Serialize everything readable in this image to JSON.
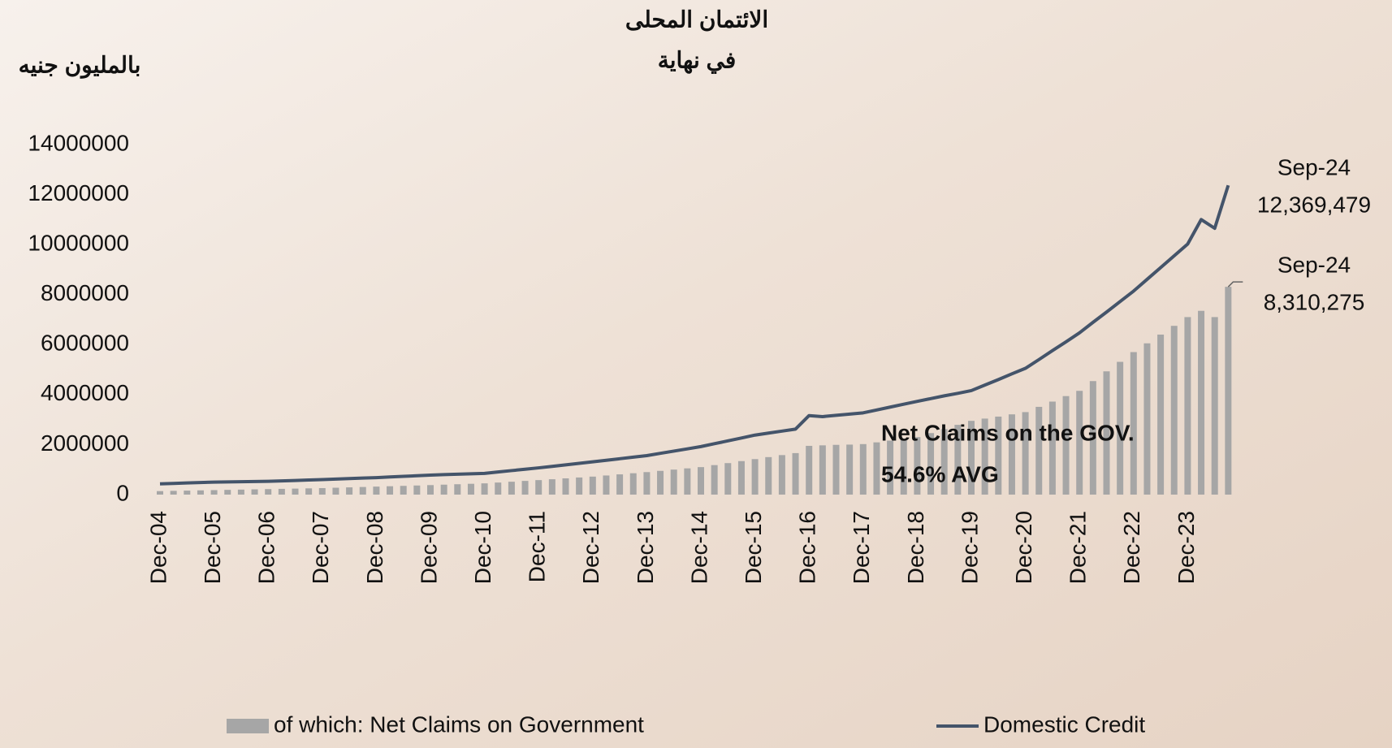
{
  "chart_data": {
    "type": "bar-line",
    "title_lines": [
      "الائتمان المحلى",
      "في نهاية"
    ],
    "y_label": "بالمليون جنيه",
    "categories": [
      "Dec-04",
      null,
      null,
      null,
      "Dec-05",
      null,
      null,
      null,
      "Dec-06",
      null,
      null,
      null,
      "Dec-07",
      null,
      null,
      null,
      "Dec-08",
      null,
      null,
      null,
      "Dec-09",
      null,
      null,
      null,
      "Dec-10",
      null,
      null,
      null,
      "Dec-11",
      null,
      null,
      null,
      "Dec-12",
      null,
      null,
      null,
      "Dec-13",
      null,
      null,
      null,
      "Dec-14",
      null,
      null,
      null,
      "Dec-15",
      null,
      null,
      null,
      "Dec-16",
      null,
      null,
      null,
      "Dec-17",
      null,
      null,
      null,
      "Dec-18",
      null,
      null,
      null,
      "Dec-19",
      null,
      null,
      null,
      "Dec-20",
      null,
      null,
      null,
      "Dec-21",
      null,
      null,
      null,
      "Dec-22",
      null,
      null,
      null,
      "Dec-23",
      null,
      null,
      null
    ],
    "series": [
      {
        "name": "of which: Net Claims on Government",
        "kind": "bar",
        "color": "#a6a6a6",
        "values": [
          140000,
          150000,
          160000,
          170000,
          180000,
          190000,
          200000,
          210000,
          220000,
          230000,
          240000,
          250000,
          260000,
          275000,
          290000,
          305000,
          320000,
          335000,
          350000,
          365000,
          380000,
          398000,
          415000,
          433000,
          450000,
          483000,
          515000,
          548000,
          580000,
          615000,
          650000,
          685000,
          720000,
          765000,
          810000,
          855000,
          900000,
          950000,
          1000000,
          1050000,
          1100000,
          1180000,
          1260000,
          1340000,
          1420000,
          1500000,
          1580000,
          1660000,
          1950000,
          1970000,
          1990000,
          2000000,
          2020000,
          2090000,
          2160000,
          2230000,
          2300000,
          2460000,
          2620000,
          2790000,
          2950000,
          3040000,
          3120000,
          3210000,
          3300000,
          3510000,
          3720000,
          3940000,
          4150000,
          4540000,
          4930000,
          5310000,
          5700000,
          6050000,
          6400000,
          6750000,
          7100000,
          7350000,
          7100000,
          8310275
        ],
        "value_labels": [
          null,
          null,
          null,
          null,
          null,
          null,
          null,
          null,
          null,
          null,
          null,
          null,
          null,
          null,
          null,
          null,
          null,
          null,
          null,
          null,
          null,
          null,
          null,
          null,
          null,
          null,
          null,
          null,
          null,
          null,
          null,
          null,
          null,
          null,
          null,
          null,
          null,
          null,
          null,
          null,
          null,
          null,
          null,
          null,
          null,
          null,
          null,
          null,
          null,
          null,
          null,
          null,
          null,
          null,
          null,
          null,
          null,
          null,
          null,
          null,
          null,
          null,
          null,
          null,
          null,
          null,
          null,
          null,
          null,
          null,
          null,
          null,
          null,
          null,
          null,
          null,
          null,
          null,
          null,
          "8,310,275"
        ]
      },
      {
        "name": "Domestic Credit",
        "kind": "line",
        "color": "#44546a",
        "values": [
          430000,
          448000,
          465000,
          483000,
          500000,
          508000,
          515000,
          523000,
          530000,
          548000,
          565000,
          583000,
          600000,
          620000,
          640000,
          660000,
          680000,
          705000,
          730000,
          755000,
          780000,
          798000,
          815000,
          833000,
          850000,
          905000,
          960000,
          1015000,
          1070000,
          1130000,
          1190000,
          1250000,
          1310000,
          1372000,
          1435000,
          1497000,
          1560000,
          1650000,
          1740000,
          1830000,
          1920000,
          2035000,
          2150000,
          2265000,
          2380000,
          2460000,
          2540000,
          2620000,
          3160000,
          3120000,
          3170000,
          3220000,
          3270000,
          3385000,
          3500000,
          3615000,
          3730000,
          3840000,
          3950000,
          4050000,
          4160000,
          4380000,
          4600000,
          4830000,
          5050000,
          5400000,
          5760000,
          6110000,
          6470000,
          6890000,
          7300000,
          7720000,
          8140000,
          8610000,
          9080000,
          9550000,
          10020000,
          11000000,
          10650000,
          12369479
        ],
        "value_labels": [
          null,
          null,
          null,
          null,
          null,
          null,
          null,
          null,
          null,
          null,
          null,
          null,
          null,
          null,
          null,
          null,
          null,
          null,
          null,
          null,
          null,
          null,
          null,
          null,
          null,
          null,
          null,
          null,
          null,
          null,
          null,
          null,
          null,
          null,
          null,
          null,
          null,
          null,
          null,
          null,
          null,
          null,
          null,
          null,
          null,
          null,
          null,
          null,
          null,
          null,
          null,
          null,
          null,
          null,
          null,
          null,
          null,
          null,
          null,
          null,
          null,
          null,
          null,
          null,
          null,
          null,
          null,
          null,
          null,
          null,
          null,
          null,
          null,
          null,
          null,
          null,
          null,
          null,
          null,
          "12,369,479"
        ]
      }
    ],
    "end_category": "Sep-24",
    "annotation_lines": [
      "Net Claims on the GOV.",
      "54.6% AVG"
    ],
    "annotation_color": "#ff0000",
    "ylim": [
      0,
      14000000
    ],
    "yticks": [
      0,
      2000000,
      4000000,
      6000000,
      8000000,
      10000000,
      12000000,
      14000000
    ]
  }
}
